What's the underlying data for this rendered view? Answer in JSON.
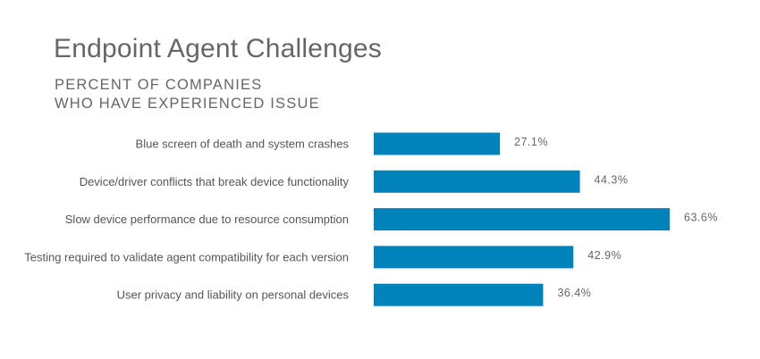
{
  "chart_data": {
    "type": "bar",
    "orientation": "horizontal",
    "title": "Endpoint Agent Challenges",
    "subtitle_lines": [
      "PERCENT OF COMPANIES",
      "WHO HAVE EXPERIENCED ISSUE"
    ],
    "categories": [
      "Blue screen of death and system crashes",
      "Device/driver conflicts that break device functionality",
      "Slow device performance due to resource consumption",
      "Testing required to validate agent compatibility for each version",
      "User privacy and liability on personal devices"
    ],
    "values": [
      27.1,
      44.3,
      63.6,
      42.9,
      36.4
    ],
    "value_labels": [
      "27.1%",
      "44.3%",
      "63.6%",
      "42.9%",
      "36.4%"
    ],
    "xlim": [
      0,
      63.6
    ],
    "grid": false,
    "legend": "none",
    "colors": {
      "bar": "#0083bb",
      "title": "#666666",
      "text": "#555555"
    }
  }
}
